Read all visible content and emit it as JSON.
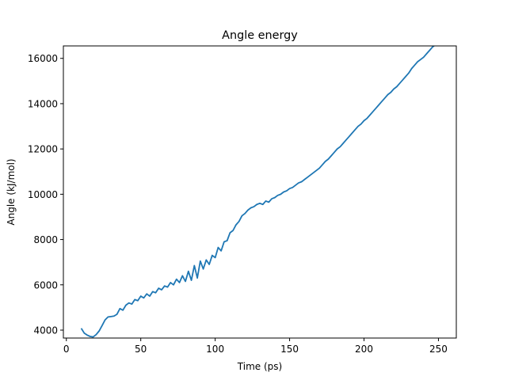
{
  "chart_data": {
    "type": "line",
    "title": "Angle energy",
    "xlabel": "Time (ps)",
    "ylabel": "Angle (kJ/mol)",
    "xlim": [
      -2,
      262
    ],
    "ylim": [
      3650,
      16550
    ],
    "xticks": [
      0,
      50,
      100,
      150,
      200,
      250
    ],
    "yticks": [
      4000,
      6000,
      8000,
      10000,
      12000,
      14000,
      16000
    ],
    "grid": false,
    "line_color": "#1f77b4",
    "series": [
      {
        "x": [
          10,
          12,
          14,
          16,
          18,
          20,
          22,
          24,
          26,
          28,
          30,
          32,
          34,
          36,
          38,
          40,
          42,
          44,
          46,
          48,
          50,
          52,
          54,
          56,
          58,
          60,
          62,
          64,
          66,
          68,
          70,
          72,
          74,
          76,
          78,
          80,
          82,
          84,
          86,
          88,
          90,
          92,
          94,
          96,
          98,
          100,
          102,
          104,
          106,
          108,
          110,
          112,
          114,
          116,
          118,
          120,
          122,
          124,
          126,
          128,
          130,
          132,
          134,
          136,
          138,
          140,
          142,
          144,
          146,
          148,
          150,
          152,
          154,
          156,
          158,
          160,
          162,
          164,
          166,
          168,
          170,
          172,
          174,
          176,
          178,
          180,
          182,
          184,
          186,
          188,
          190,
          192,
          194,
          196,
          198,
          200,
          202,
          204,
          206,
          208,
          210,
          212,
          214,
          216,
          218,
          220,
          222,
          224,
          226,
          228,
          230,
          232,
          234,
          236,
          238,
          240,
          242,
          244,
          246,
          248,
          250
        ],
        "y": [
          4080,
          3870,
          3780,
          3720,
          3700,
          3800,
          3960,
          4200,
          4450,
          4580,
          4600,
          4620,
          4700,
          4950,
          4880,
          5100,
          5200,
          5150,
          5350,
          5300,
          5500,
          5420,
          5600,
          5500,
          5700,
          5650,
          5850,
          5780,
          5950,
          5900,
          6100,
          6000,
          6250,
          6100,
          6400,
          6150,
          6600,
          6200,
          6850,
          6300,
          7050,
          6700,
          7100,
          6900,
          7300,
          7200,
          7650,
          7500,
          7900,
          7950,
          8300,
          8400,
          8650,
          8800,
          9050,
          9150,
          9300,
          9400,
          9450,
          9550,
          9600,
          9550,
          9700,
          9650,
          9800,
          9850,
          9950,
          10000,
          10100,
          10150,
          10250,
          10300,
          10400,
          10500,
          10550,
          10650,
          10750,
          10850,
          10950,
          11050,
          11150,
          11300,
          11450,
          11550,
          11700,
          11850,
          12000,
          12100,
          12250,
          12400,
          12550,
          12700,
          12850,
          13000,
          13100,
          13250,
          13350,
          13500,
          13650,
          13800,
          13950,
          14100,
          14250,
          14400,
          14500,
          14650,
          14750,
          14900,
          15050,
          15200,
          15350,
          15550,
          15700,
          15850,
          15950,
          16050,
          16200,
          16350,
          16500,
          16600,
          16700
        ]
      }
    ]
  }
}
